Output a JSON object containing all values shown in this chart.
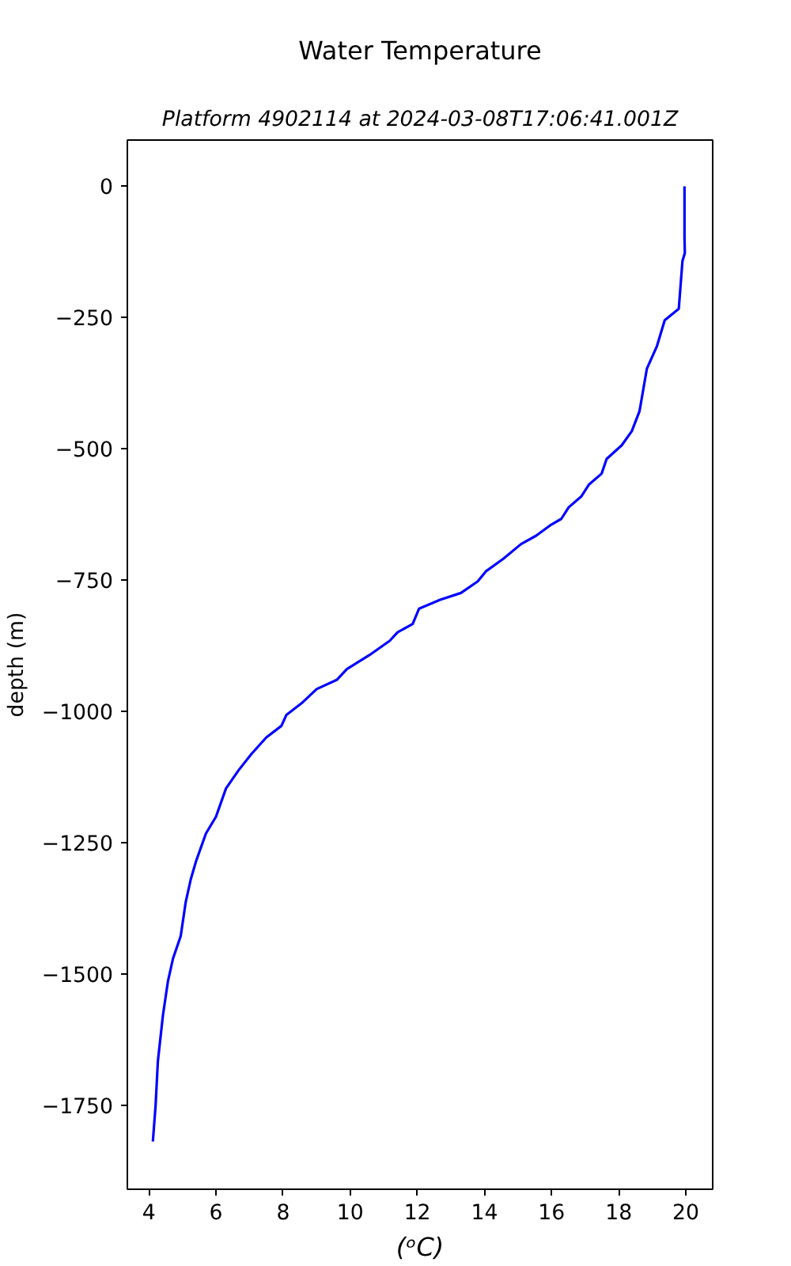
{
  "chart_data": {
    "type": "line",
    "title": "Water Temperature",
    "subtitle": "Platform 4902114 at 2024-03-08T17:06:41.001Z",
    "xlabel": "(ᵒC)",
    "ylabel": "depth (m)",
    "xlim": [
      3.36,
      20.8
    ],
    "ylim": [
      -1909,
      88
    ],
    "xticks": [
      4,
      6,
      8,
      10,
      12,
      14,
      16,
      18,
      20
    ],
    "yticks": [
      {
        "value": 0,
        "label": "0"
      },
      {
        "value": -250,
        "label": "−250"
      },
      {
        "value": -500,
        "label": "−500"
      },
      {
        "value": -750,
        "label": "−750"
      },
      {
        "value": -1000,
        "label": "−1000"
      },
      {
        "value": -1250,
        "label": "−1250"
      },
      {
        "value": -1500,
        "label": "−1500"
      },
      {
        "value": -1750,
        "label": "−1750"
      }
    ],
    "grid": false,
    "marker": "none",
    "line_style": "solid",
    "series": [
      {
        "color": "#0000ff",
        "x": [
          19.96,
          19.96,
          19.97,
          19.9,
          19.79,
          19.37,
          19.14,
          18.84,
          18.62,
          18.39,
          18.09,
          17.64,
          17.49,
          17.11,
          16.89,
          16.51,
          16.29,
          15.99,
          15.54,
          15.09,
          14.56,
          14.04,
          13.8,
          13.3,
          12.68,
          12.05,
          11.86,
          11.41,
          11.18,
          10.58,
          9.9,
          9.61,
          9.0,
          8.55,
          8.1,
          7.95,
          7.5,
          7.05,
          6.68,
          6.3,
          6.0,
          5.7,
          5.4,
          5.25,
          5.1,
          4.95,
          4.72,
          4.57,
          4.42,
          4.27,
          4.2,
          4.12
        ],
        "values": [
          0,
          -98,
          -127,
          -142,
          -233,
          -255,
          -304,
          -347,
          -428,
          -466,
          -493,
          -519,
          -547,
          -568,
          -590,
          -611,
          -633,
          -644,
          -665,
          -681,
          -709,
          -733,
          -752,
          -774,
          -787,
          -804,
          -833,
          -849,
          -865,
          -892,
          -919,
          -939,
          -957,
          -984,
          -1006,
          -1027,
          -1049,
          -1081,
          -1111,
          -1146,
          -1200,
          -1232,
          -1286,
          -1319,
          -1362,
          -1427,
          -1470,
          -1513,
          -1578,
          -1665,
          -1751,
          -1818
        ]
      }
    ]
  }
}
